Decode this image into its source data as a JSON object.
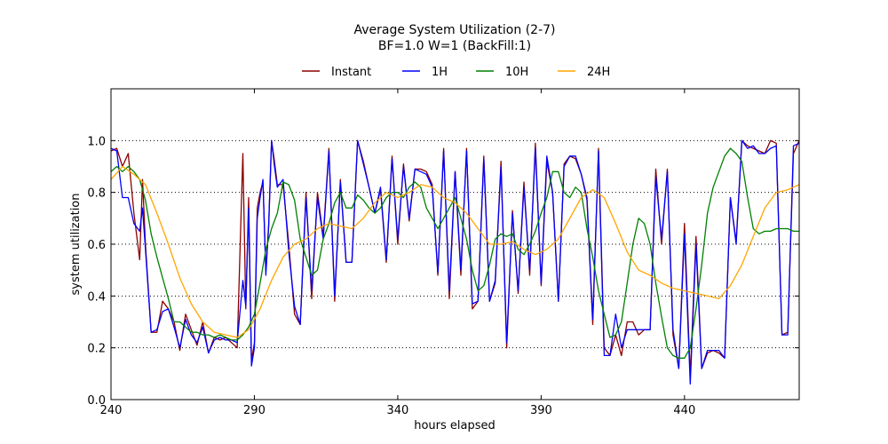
{
  "chart_data": {
    "type": "line",
    "title": "Average System Utilization (2-7)",
    "subtitle": "BF=1.0   W=1   (BackFill:1)",
    "xlabel": "hours elapsed",
    "ylabel": "system utilization",
    "xlim": [
      240,
      480
    ],
    "ylim": [
      0.0,
      1.2
    ],
    "xticks": [
      240,
      290,
      340,
      390,
      440
    ],
    "yticks": [
      0.0,
      0.2,
      0.4,
      0.6,
      0.8,
      1.0
    ],
    "ytick_labels": [
      "0.0",
      "0.2",
      "0.4",
      "0.6",
      "0.8",
      "1.0"
    ],
    "grid": "horizontal dotted",
    "legend_position": "top-center",
    "series": [
      {
        "name": "Instant",
        "color": "#8b0000",
        "x": [
          240,
          242,
          244,
          246,
          248,
          250,
          251,
          252,
          254,
          256,
          258,
          260,
          262,
          264,
          266,
          268,
          270,
          272,
          274,
          276,
          278,
          280,
          282,
          284,
          286,
          287,
          288,
          289,
          290,
          291,
          292,
          293,
          294,
          295,
          296,
          297,
          298,
          300,
          302,
          304,
          306,
          308,
          310,
          312,
          314,
          316,
          318,
          320,
          322,
          324,
          326,
          328,
          330,
          332,
          334,
          336,
          338,
          340,
          342,
          344,
          346,
          348,
          350,
          352,
          354,
          356,
          358,
          360,
          362,
          364,
          366,
          368,
          370,
          372,
          374,
          376,
          378,
          380,
          382,
          384,
          386,
          388,
          390,
          392,
          394,
          396,
          398,
          400,
          402,
          404,
          406,
          408,
          410,
          412,
          414,
          416,
          418,
          420,
          422,
          424,
          426,
          428,
          430,
          432,
          434,
          436,
          438,
          440,
          442,
          444,
          446,
          448,
          450,
          452,
          454,
          456,
          458,
          460,
          462,
          464,
          466,
          468,
          470,
          472,
          474,
          476,
          478,
          480
        ],
        "y": [
          0.96,
          0.97,
          0.9,
          0.95,
          0.72,
          0.54,
          0.85,
          0.6,
          0.26,
          0.26,
          0.38,
          0.35,
          0.3,
          0.19,
          0.33,
          0.27,
          0.21,
          0.3,
          0.18,
          0.24,
          0.23,
          0.24,
          0.22,
          0.2,
          0.95,
          0.35,
          0.78,
          0.15,
          0.22,
          0.74,
          0.8,
          0.84,
          0.5,
          0.67,
          1.0,
          0.92,
          0.83,
          0.83,
          0.6,
          0.33,
          0.29,
          0.8,
          0.39,
          0.8,
          0.63,
          0.97,
          0.38,
          0.85,
          0.53,
          0.53,
          1.0,
          0.92,
          0.82,
          0.72,
          0.81,
          0.53,
          0.94,
          0.6,
          0.91,
          0.69,
          0.89,
          0.89,
          0.88,
          0.83,
          0.48,
          0.97,
          0.39,
          0.88,
          0.48,
          0.97,
          0.35,
          0.38,
          0.94,
          0.38,
          0.45,
          0.92,
          0.2,
          0.73,
          0.41,
          0.84,
          0.48,
          0.99,
          0.44,
          0.92,
          0.8,
          0.38,
          0.91,
          0.94,
          0.93,
          0.87,
          0.77,
          0.29,
          0.97,
          0.2,
          0.17,
          0.25,
          0.17,
          0.3,
          0.3,
          0.25,
          0.27,
          0.27,
          0.89,
          0.6,
          0.89,
          0.25,
          0.12,
          0.68,
          0.09,
          0.63,
          0.12,
          0.18,
          0.19,
          0.18,
          0.16,
          0.78,
          0.61,
          1.0,
          0.98,
          0.97,
          0.96,
          0.95,
          1.0,
          0.99,
          0.25,
          0.26,
          0.95,
          1.0
        ]
      },
      {
        "name": "1H",
        "color": "#0000ff",
        "x": [
          240,
          242,
          244,
          246,
          248,
          250,
          251,
          252,
          254,
          256,
          258,
          260,
          262,
          264,
          266,
          268,
          270,
          272,
          274,
          276,
          278,
          280,
          282,
          284,
          286,
          287,
          288,
          289,
          290,
          291,
          292,
          293,
          294,
          295,
          296,
          297,
          298,
          300,
          302,
          304,
          306,
          308,
          310,
          312,
          314,
          316,
          318,
          320,
          322,
          324,
          326,
          328,
          330,
          332,
          334,
          336,
          338,
          340,
          342,
          344,
          346,
          348,
          350,
          352,
          354,
          356,
          358,
          360,
          362,
          364,
          366,
          368,
          370,
          372,
          374,
          376,
          378,
          380,
          382,
          384,
          386,
          388,
          390,
          392,
          394,
          396,
          398,
          400,
          402,
          404,
          406,
          408,
          410,
          412,
          414,
          416,
          418,
          420,
          422,
          424,
          426,
          428,
          430,
          432,
          434,
          436,
          438,
          440,
          442,
          444,
          446,
          448,
          450,
          452,
          454,
          456,
          458,
          460,
          462,
          464,
          466,
          468,
          470,
          472,
          474,
          476,
          478,
          480
        ],
        "y": [
          0.97,
          0.96,
          0.78,
          0.78,
          0.68,
          0.65,
          0.74,
          0.58,
          0.26,
          0.27,
          0.34,
          0.35,
          0.28,
          0.2,
          0.31,
          0.25,
          0.22,
          0.28,
          0.18,
          0.23,
          0.24,
          0.23,
          0.23,
          0.22,
          0.46,
          0.36,
          0.74,
          0.13,
          0.2,
          0.7,
          0.78,
          0.85,
          0.48,
          0.68,
          1.0,
          0.9,
          0.82,
          0.85,
          0.57,
          0.36,
          0.29,
          0.78,
          0.42,
          0.78,
          0.62,
          0.96,
          0.4,
          0.84,
          0.53,
          0.53,
          1.0,
          0.91,
          0.82,
          0.72,
          0.82,
          0.54,
          0.93,
          0.62,
          0.9,
          0.7,
          0.89,
          0.88,
          0.87,
          0.82,
          0.49,
          0.96,
          0.42,
          0.88,
          0.5,
          0.96,
          0.37,
          0.38,
          0.93,
          0.38,
          0.46,
          0.9,
          0.22,
          0.72,
          0.42,
          0.82,
          0.5,
          0.97,
          0.45,
          0.94,
          0.8,
          0.38,
          0.9,
          0.94,
          0.94,
          0.87,
          0.78,
          0.31,
          0.96,
          0.17,
          0.17,
          0.33,
          0.2,
          0.27,
          0.27,
          0.27,
          0.27,
          0.27,
          0.86,
          0.62,
          0.88,
          0.27,
          0.12,
          0.64,
          0.06,
          0.6,
          0.12,
          0.19,
          0.19,
          0.19,
          0.16,
          0.78,
          0.6,
          1.0,
          0.97,
          0.98,
          0.95,
          0.95,
          0.97,
          0.98,
          0.25,
          0.25,
          0.98,
          0.99
        ]
      },
      {
        "name": "10H",
        "color": "#008000",
        "x": [
          240,
          242,
          244,
          246,
          248,
          250,
          252,
          254,
          256,
          258,
          260,
          262,
          264,
          266,
          268,
          270,
          272,
          274,
          276,
          278,
          280,
          282,
          284,
          286,
          288,
          290,
          292,
          294,
          296,
          298,
          300,
          302,
          304,
          306,
          308,
          310,
          312,
          314,
          316,
          318,
          320,
          322,
          324,
          326,
          328,
          330,
          332,
          334,
          336,
          338,
          340,
          342,
          344,
          346,
          348,
          350,
          352,
          354,
          356,
          358,
          360,
          362,
          364,
          366,
          368,
          370,
          372,
          374,
          376,
          378,
          380,
          382,
          384,
          386,
          388,
          390,
          392,
          394,
          396,
          398,
          400,
          402,
          404,
          406,
          408,
          410,
          412,
          414,
          416,
          418,
          420,
          422,
          424,
          426,
          428,
          430,
          432,
          434,
          436,
          438,
          440,
          442,
          444,
          446,
          448,
          450,
          452,
          454,
          456,
          458,
          460,
          462,
          464,
          466,
          468,
          470,
          472,
          474,
          476,
          478,
          480
        ],
        "y": [
          0.88,
          0.9,
          0.88,
          0.9,
          0.88,
          0.85,
          0.77,
          0.64,
          0.55,
          0.47,
          0.39,
          0.3,
          0.3,
          0.28,
          0.26,
          0.26,
          0.25,
          0.25,
          0.24,
          0.25,
          0.24,
          0.23,
          0.23,
          0.25,
          0.28,
          0.33,
          0.45,
          0.58,
          0.66,
          0.72,
          0.84,
          0.83,
          0.77,
          0.62,
          0.55,
          0.48,
          0.5,
          0.62,
          0.68,
          0.76,
          0.8,
          0.74,
          0.74,
          0.79,
          0.77,
          0.74,
          0.72,
          0.74,
          0.78,
          0.8,
          0.8,
          0.78,
          0.82,
          0.84,
          0.82,
          0.74,
          0.7,
          0.66,
          0.7,
          0.74,
          0.78,
          0.7,
          0.62,
          0.5,
          0.42,
          0.44,
          0.52,
          0.62,
          0.64,
          0.63,
          0.64,
          0.58,
          0.56,
          0.6,
          0.65,
          0.72,
          0.78,
          0.88,
          0.88,
          0.8,
          0.78,
          0.82,
          0.8,
          0.66,
          0.55,
          0.42,
          0.33,
          0.24,
          0.25,
          0.3,
          0.45,
          0.6,
          0.7,
          0.68,
          0.6,
          0.45,
          0.32,
          0.2,
          0.17,
          0.16,
          0.16,
          0.2,
          0.35,
          0.52,
          0.72,
          0.82,
          0.88,
          0.94,
          0.97,
          0.95,
          0.92,
          0.78,
          0.66,
          0.64,
          0.65,
          0.65,
          0.66,
          0.66,
          0.66,
          0.65,
          0.65
        ]
      },
      {
        "name": "24H",
        "color": "#ffa500",
        "x": [
          240,
          244,
          248,
          252,
          256,
          260,
          264,
          268,
          272,
          276,
          280,
          284,
          288,
          292,
          296,
          300,
          304,
          308,
          312,
          316,
          320,
          324,
          328,
          332,
          336,
          340,
          344,
          348,
          352,
          356,
          360,
          364,
          368,
          372,
          376,
          380,
          384,
          388,
          392,
          396,
          400,
          404,
          408,
          412,
          416,
          420,
          424,
          428,
          432,
          436,
          440,
          444,
          448,
          452,
          456,
          460,
          464,
          468,
          472,
          476,
          480
        ],
        "y": [
          0.85,
          0.9,
          0.87,
          0.83,
          0.72,
          0.6,
          0.47,
          0.37,
          0.3,
          0.26,
          0.25,
          0.24,
          0.27,
          0.35,
          0.46,
          0.55,
          0.6,
          0.62,
          0.66,
          0.68,
          0.67,
          0.66,
          0.7,
          0.76,
          0.8,
          0.78,
          0.8,
          0.83,
          0.82,
          0.78,
          0.76,
          0.72,
          0.66,
          0.6,
          0.6,
          0.61,
          0.58,
          0.56,
          0.58,
          0.62,
          0.7,
          0.78,
          0.81,
          0.78,
          0.68,
          0.57,
          0.5,
          0.48,
          0.45,
          0.43,
          0.42,
          0.41,
          0.4,
          0.39,
          0.44,
          0.52,
          0.63,
          0.74,
          0.8,
          0.81,
          0.83
        ]
      }
    ]
  }
}
